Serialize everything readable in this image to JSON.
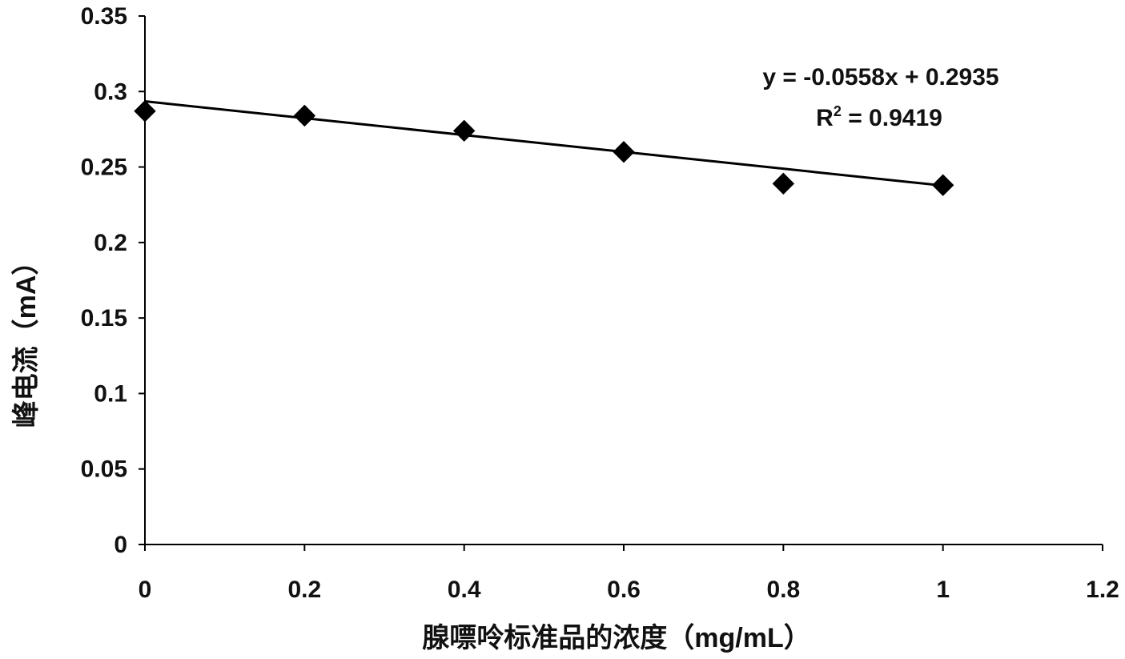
{
  "chart_data": {
    "type": "scatter",
    "title": "",
    "xlabel": "腺嘌呤标准品的浓度（mg/mL）",
    "ylabel": "峰电流（mA）",
    "xlim": [
      0,
      1.2
    ],
    "ylim": [
      0,
      0.35
    ],
    "xticks": [
      "0",
      "0.2",
      "0.4",
      "0.6",
      "0.8",
      "1",
      "1.2"
    ],
    "yticks": [
      "0",
      "0.05",
      "0.1",
      "0.15",
      "0.2",
      "0.25",
      "0.3",
      "0.35"
    ],
    "grid": false,
    "legend": "none",
    "series": [
      {
        "marker": "diamond",
        "color": "#000000",
        "x": [
          0,
          0.2,
          0.4,
          0.6,
          0.8,
          1.0
        ],
        "y": [
          0.287,
          0.284,
          0.274,
          0.26,
          0.239,
          0.238
        ]
      }
    ],
    "trendline": {
      "type": "linear",
      "slope": -0.0558,
      "intercept": 0.2935,
      "x_range": [
        0,
        1.0
      ],
      "equation": "y = -0.0558x + 0.2935",
      "r2_prefix": "R",
      "r2_sup": "2",
      "r2_value": " = 0.9419"
    }
  }
}
